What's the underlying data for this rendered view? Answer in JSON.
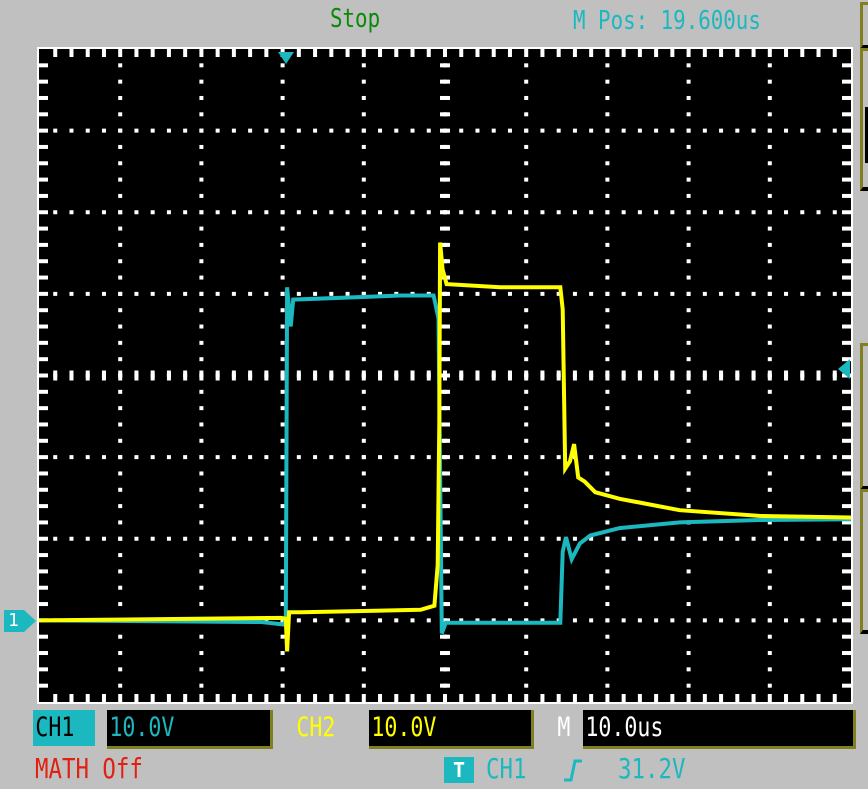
{
  "header": {
    "status": "Stop",
    "m_pos": "M Pos: 19.600us"
  },
  "channels": {
    "ch1": {
      "label": "CH1",
      "scale": "10.0V",
      "color": "#1cb8c0",
      "ground_marker": "1"
    },
    "ch2": {
      "label": "CH2",
      "scale": "10.0V",
      "color": "#ffff00"
    },
    "time": {
      "label": "M",
      "scale": "10.0us"
    }
  },
  "math": "MATH Off",
  "trigger": {
    "icon": "T",
    "source": "CH1",
    "slope": "rising-edge-icon",
    "slope_glyph": "⌐",
    "level": "31.2V"
  },
  "chart_data": {
    "type": "line",
    "title": "",
    "xlabel": "",
    "ylabel": "",
    "x_unit": "us",
    "y_unit": "V",
    "xlim": [
      0,
      100
    ],
    "ylim": [
      -30,
      50
    ],
    "x_per_div": 10,
    "y_per_div": 10,
    "grid": true,
    "trigger_time": 30.5,
    "series": [
      {
        "name": "CH1",
        "color": "#1cb8c0",
        "x": [
          0,
          27.4,
          30.1,
          30.4,
          30.55,
          31.0,
          31.3,
          44.5,
          48.6,
          49.2,
          49.6,
          50.1,
          64.2,
          64.5,
          64.9,
          65.6,
          66.6,
          67.9,
          71.5,
          78.9,
          88.7,
          100
        ],
        "y": [
          0,
          -0.2,
          -0.5,
          0,
          40.8,
          36,
          39.3,
          39.8,
          39.8,
          37,
          -1.6,
          -0.3,
          -0.3,
          8.4,
          10.2,
          7.5,
          9.4,
          10.4,
          11.3,
          12.0,
          12.3,
          12.4
        ]
      },
      {
        "name": "CH2",
        "color": "#ffff00",
        "x": [
          0,
          29.8,
          30.4,
          30.55,
          30.8,
          32.3,
          47.0,
          48.7,
          49.1,
          49.3,
          49.4,
          49.7,
          50.2,
          56.8,
          64.2,
          64.5,
          64.8,
          65.4,
          65.9,
          66.4,
          67.2,
          68.5,
          71.5,
          78.9,
          88.7,
          100
        ],
        "y": [
          0,
          0.3,
          0.2,
          -3.8,
          1.0,
          1.0,
          1.3,
          1.8,
          6.8,
          24,
          46.3,
          43,
          41.2,
          40.8,
          40.8,
          38.1,
          18.6,
          19.5,
          21.6,
          17.5,
          17.0,
          15.7,
          14.9,
          13.5,
          12.8,
          12.6
        ]
      }
    ]
  }
}
